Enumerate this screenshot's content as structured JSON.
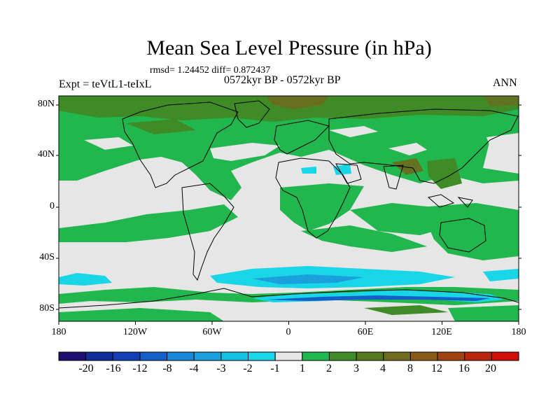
{
  "title": "Mean Sea Level Pressure (in hPa)",
  "stats_line": "rmsd= 1.24452 diff= 0.872437",
  "period_line": "0572kyr BP - 0572kyr BP",
  "experiment_label": "Expt = teVtL1-teIxL",
  "season_label": "ANN",
  "colors": {
    "background_zero": "#e6e6e6",
    "band_1_2": "#22b64e",
    "band_3_4": "#3f8b26",
    "band_4_8": "#6e6a1e",
    "band_neg_2_1": "#18d6e6",
    "band_neg_3_2": "#1aa0dc",
    "band_neg_4": "#1460c8",
    "coast": "#000000"
  },
  "map": {
    "lat_ticks": [
      "80N",
      "40N",
      "0",
      "40S",
      "80S"
    ],
    "lon_ticks": [
      "180",
      "120W",
      "60W",
      "0",
      "60E",
      "120E",
      "180"
    ]
  },
  "colorbar": {
    "colors": [
      "#1c0f6e",
      "#122c9a",
      "#143fb4",
      "#1460c8",
      "#1a86d8",
      "#1aa0dc",
      "#16bee0",
      "#18d6e6",
      "#e6e6e6",
      "#22b64e",
      "#3f8b26",
      "#56771e",
      "#6e6a1e",
      "#8c5a18",
      "#a04212",
      "#b8260c",
      "#d10f08"
    ],
    "labels": [
      "-20",
      "-16",
      "-12",
      "-8",
      "-4",
      "-3",
      "-2",
      "-1",
      "1",
      "2",
      "3",
      "4",
      "8",
      "12",
      "16",
      "20"
    ]
  }
}
